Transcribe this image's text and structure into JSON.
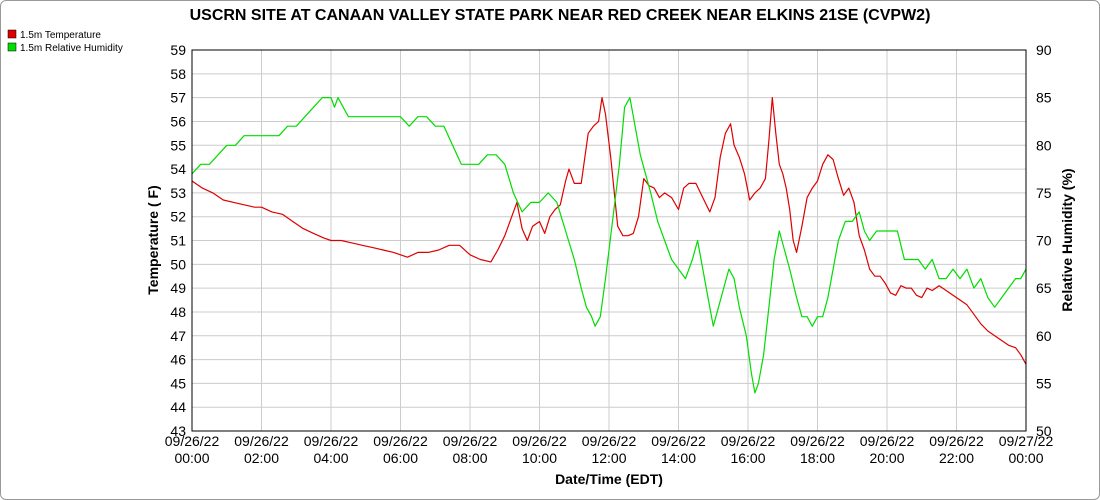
{
  "chart_data": {
    "type": "line",
    "title": "USCRN SITE AT CANAAN VALLEY STATE PARK NEAR RED CREEK NEAR ELKINS 21SE (CVPW2)",
    "xlabel": "Date/Time (EDT)",
    "ylabel_left": "Temperature ( F)",
    "ylabel_right": "Relative Humidity (%)",
    "xlim": [
      0,
      24
    ],
    "ylim_left": [
      43,
      59
    ],
    "ylim_right": [
      50,
      90
    ],
    "grid": true,
    "legend_position": "top-left",
    "x_ticks": [
      {
        "date": "09/26/22",
        "time": "00:00"
      },
      {
        "date": "09/26/22",
        "time": "02:00"
      },
      {
        "date": "09/26/22",
        "time": "04:00"
      },
      {
        "date": "09/26/22",
        "time": "06:00"
      },
      {
        "date": "09/26/22",
        "time": "08:00"
      },
      {
        "date": "09/26/22",
        "time": "10:00"
      },
      {
        "date": "09/26/22",
        "time": "12:00"
      },
      {
        "date": "09/26/22",
        "time": "14:00"
      },
      {
        "date": "09/26/22",
        "time": "16:00"
      },
      {
        "date": "09/26/22",
        "time": "18:00"
      },
      {
        "date": "09/26/22",
        "time": "20:00"
      },
      {
        "date": "09/26/22",
        "time": "22:00"
      },
      {
        "date": "09/27/22",
        "time": "00:00"
      }
    ],
    "y_ticks_left": [
      "43",
      "44",
      "45",
      "46",
      "47",
      "48",
      "49",
      "50",
      "51",
      "52",
      "53",
      "54",
      "55",
      "56",
      "57",
      "58",
      "59"
    ],
    "y_ticks_right": [
      "50",
      "55",
      "60",
      "65",
      "70",
      "75",
      "80",
      "85",
      "90"
    ],
    "series": [
      {
        "name": "1.5m Temperature",
        "axis": "left",
        "color": "#dd0000",
        "points": [
          [
            0.0,
            53.5
          ],
          [
            0.3,
            53.2
          ],
          [
            0.6,
            53.0
          ],
          [
            0.9,
            52.7
          ],
          [
            1.2,
            52.6
          ],
          [
            1.5,
            52.5
          ],
          [
            1.8,
            52.4
          ],
          [
            2.0,
            52.4
          ],
          [
            2.3,
            52.2
          ],
          [
            2.6,
            52.1
          ],
          [
            2.9,
            51.8
          ],
          [
            3.2,
            51.5
          ],
          [
            3.5,
            51.3
          ],
          [
            3.8,
            51.1
          ],
          [
            4.0,
            51.0
          ],
          [
            4.3,
            51.0
          ],
          [
            4.6,
            50.9
          ],
          [
            4.9,
            50.8
          ],
          [
            5.2,
            50.7
          ],
          [
            5.5,
            50.6
          ],
          [
            5.8,
            50.5
          ],
          [
            6.0,
            50.4
          ],
          [
            6.2,
            50.3
          ],
          [
            6.5,
            50.5
          ],
          [
            6.8,
            50.5
          ],
          [
            7.1,
            50.6
          ],
          [
            7.4,
            50.8
          ],
          [
            7.7,
            50.8
          ],
          [
            8.0,
            50.4
          ],
          [
            8.3,
            50.2
          ],
          [
            8.6,
            50.1
          ],
          [
            8.8,
            50.6
          ],
          [
            9.0,
            51.2
          ],
          [
            9.2,
            52.0
          ],
          [
            9.35,
            52.6
          ],
          [
            9.5,
            51.5
          ],
          [
            9.65,
            51.0
          ],
          [
            9.8,
            51.6
          ],
          [
            10.0,
            51.8
          ],
          [
            10.15,
            51.3
          ],
          [
            10.3,
            52.0
          ],
          [
            10.45,
            52.3
          ],
          [
            10.6,
            52.5
          ],
          [
            10.75,
            53.5
          ],
          [
            10.85,
            54.0
          ],
          [
            11.0,
            53.4
          ],
          [
            11.2,
            53.4
          ],
          [
            11.4,
            55.5
          ],
          [
            11.55,
            55.8
          ],
          [
            11.7,
            56.0
          ],
          [
            11.8,
            57.0
          ],
          [
            11.9,
            56.3
          ],
          [
            12.05,
            54.5
          ],
          [
            12.25,
            51.6
          ],
          [
            12.4,
            51.2
          ],
          [
            12.55,
            51.2
          ],
          [
            12.7,
            51.3
          ],
          [
            12.85,
            52.0
          ],
          [
            13.0,
            53.6
          ],
          [
            13.15,
            53.3
          ],
          [
            13.3,
            53.2
          ],
          [
            13.45,
            52.8
          ],
          [
            13.6,
            53.0
          ],
          [
            13.8,
            52.8
          ],
          [
            14.0,
            52.3
          ],
          [
            14.15,
            53.2
          ],
          [
            14.3,
            53.4
          ],
          [
            14.5,
            53.4
          ],
          [
            14.7,
            52.8
          ],
          [
            14.9,
            52.2
          ],
          [
            15.05,
            52.8
          ],
          [
            15.2,
            54.5
          ],
          [
            15.35,
            55.5
          ],
          [
            15.5,
            55.9
          ],
          [
            15.6,
            55.0
          ],
          [
            15.75,
            54.5
          ],
          [
            15.9,
            53.8
          ],
          [
            16.05,
            52.7
          ],
          [
            16.2,
            53.0
          ],
          [
            16.35,
            53.2
          ],
          [
            16.5,
            53.6
          ],
          [
            16.6,
            55.2
          ],
          [
            16.7,
            57.0
          ],
          [
            16.8,
            55.5
          ],
          [
            16.9,
            54.2
          ],
          [
            17.0,
            53.8
          ],
          [
            17.1,
            53.2
          ],
          [
            17.2,
            52.3
          ],
          [
            17.3,
            51.0
          ],
          [
            17.4,
            50.5
          ],
          [
            17.55,
            51.6
          ],
          [
            17.7,
            52.8
          ],
          [
            17.85,
            53.2
          ],
          [
            18.0,
            53.5
          ],
          [
            18.15,
            54.2
          ],
          [
            18.3,
            54.6
          ],
          [
            18.45,
            54.4
          ],
          [
            18.6,
            53.6
          ],
          [
            18.75,
            52.9
          ],
          [
            18.9,
            53.2
          ],
          [
            19.05,
            52.6
          ],
          [
            19.2,
            51.2
          ],
          [
            19.35,
            50.6
          ],
          [
            19.5,
            49.8
          ],
          [
            19.65,
            49.5
          ],
          [
            19.8,
            49.5
          ],
          [
            19.95,
            49.2
          ],
          [
            20.1,
            48.8
          ],
          [
            20.25,
            48.7
          ],
          [
            20.4,
            49.1
          ],
          [
            20.55,
            49.0
          ],
          [
            20.7,
            49.0
          ],
          [
            20.85,
            48.7
          ],
          [
            21.0,
            48.6
          ],
          [
            21.15,
            49.0
          ],
          [
            21.3,
            48.9
          ],
          [
            21.5,
            49.1
          ],
          [
            21.7,
            48.9
          ],
          [
            21.9,
            48.7
          ],
          [
            22.1,
            48.5
          ],
          [
            22.3,
            48.3
          ],
          [
            22.5,
            47.9
          ],
          [
            22.7,
            47.5
          ],
          [
            22.9,
            47.2
          ],
          [
            23.1,
            47.0
          ],
          [
            23.3,
            46.8
          ],
          [
            23.5,
            46.6
          ],
          [
            23.7,
            46.5
          ],
          [
            23.85,
            46.2
          ],
          [
            24.0,
            45.8
          ]
        ]
      },
      {
        "name": "1.5m Relative Humidity",
        "axis": "right",
        "color": "#00dd00",
        "points": [
          [
            0.0,
            77
          ],
          [
            0.25,
            78
          ],
          [
            0.5,
            78
          ],
          [
            0.75,
            79
          ],
          [
            1.0,
            80
          ],
          [
            1.25,
            80
          ],
          [
            1.5,
            81
          ],
          [
            2.0,
            81
          ],
          [
            2.25,
            81
          ],
          [
            2.5,
            81
          ],
          [
            2.75,
            82
          ],
          [
            3.0,
            82
          ],
          [
            3.25,
            83
          ],
          [
            3.5,
            84
          ],
          [
            3.75,
            85
          ],
          [
            4.0,
            85
          ],
          [
            4.1,
            84
          ],
          [
            4.2,
            85
          ],
          [
            4.35,
            84
          ],
          [
            4.5,
            83
          ],
          [
            5.0,
            83
          ],
          [
            5.5,
            83
          ],
          [
            6.0,
            83
          ],
          [
            6.25,
            82
          ],
          [
            6.5,
            83
          ],
          [
            6.75,
            83
          ],
          [
            7.0,
            82
          ],
          [
            7.25,
            82
          ],
          [
            7.5,
            80
          ],
          [
            7.75,
            78
          ],
          [
            8.0,
            78
          ],
          [
            8.25,
            78
          ],
          [
            8.5,
            79
          ],
          [
            8.75,
            79
          ],
          [
            9.0,
            78
          ],
          [
            9.25,
            75
          ],
          [
            9.5,
            73
          ],
          [
            9.75,
            74
          ],
          [
            10.0,
            74
          ],
          [
            10.25,
            75
          ],
          [
            10.5,
            74
          ],
          [
            10.75,
            71
          ],
          [
            11.0,
            68
          ],
          [
            11.2,
            65
          ],
          [
            11.35,
            63
          ],
          [
            11.5,
            62
          ],
          [
            11.6,
            61
          ],
          [
            11.75,
            62
          ],
          [
            11.9,
            66
          ],
          [
            12.1,
            72
          ],
          [
            12.3,
            78
          ],
          [
            12.45,
            84
          ],
          [
            12.6,
            85
          ],
          [
            12.75,
            82
          ],
          [
            12.9,
            79
          ],
          [
            13.05,
            77
          ],
          [
            13.2,
            75
          ],
          [
            13.4,
            72
          ],
          [
            13.6,
            70
          ],
          [
            13.8,
            68
          ],
          [
            14.0,
            67
          ],
          [
            14.2,
            66
          ],
          [
            14.4,
            68
          ],
          [
            14.55,
            70
          ],
          [
            14.7,
            67
          ],
          [
            14.85,
            64
          ],
          [
            15.0,
            61
          ],
          [
            15.15,
            63
          ],
          [
            15.3,
            65
          ],
          [
            15.45,
            67
          ],
          [
            15.6,
            66
          ],
          [
            15.75,
            63
          ],
          [
            15.95,
            60
          ],
          [
            16.1,
            56
          ],
          [
            16.2,
            54
          ],
          [
            16.3,
            55
          ],
          [
            16.45,
            58
          ],
          [
            16.6,
            63
          ],
          [
            16.75,
            68
          ],
          [
            16.9,
            71
          ],
          [
            17.05,
            69
          ],
          [
            17.2,
            67
          ],
          [
            17.4,
            64
          ],
          [
            17.55,
            62
          ],
          [
            17.7,
            62
          ],
          [
            17.85,
            61
          ],
          [
            18.0,
            62
          ],
          [
            18.15,
            62
          ],
          [
            18.3,
            64
          ],
          [
            18.45,
            67
          ],
          [
            18.6,
            70
          ],
          [
            18.8,
            72
          ],
          [
            19.0,
            72
          ],
          [
            19.2,
            73
          ],
          [
            19.35,
            71
          ],
          [
            19.5,
            70
          ],
          [
            19.7,
            71
          ],
          [
            19.9,
            71
          ],
          [
            20.1,
            71
          ],
          [
            20.3,
            71
          ],
          [
            20.5,
            68
          ],
          [
            20.7,
            68
          ],
          [
            20.9,
            68
          ],
          [
            21.1,
            67
          ],
          [
            21.3,
            68
          ],
          [
            21.5,
            66
          ],
          [
            21.7,
            66
          ],
          [
            21.9,
            67
          ],
          [
            22.1,
            66
          ],
          [
            22.3,
            67
          ],
          [
            22.5,
            65
          ],
          [
            22.7,
            66
          ],
          [
            22.9,
            64
          ],
          [
            23.1,
            63
          ],
          [
            23.3,
            64
          ],
          [
            23.5,
            65
          ],
          [
            23.7,
            66
          ],
          [
            23.85,
            66
          ],
          [
            24.0,
            67
          ]
        ]
      }
    ]
  },
  "colors": {
    "temperature": "#dd0000",
    "humidity": "#00dd00",
    "grid": "#cccccc",
    "frame": "#999999"
  }
}
